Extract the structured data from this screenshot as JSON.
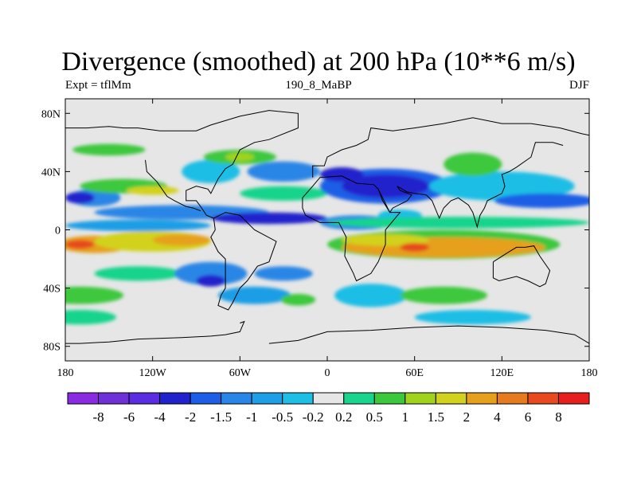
{
  "title": "Divergence (smoothed) at 200 hPa (10**6 m/s)",
  "left_string": "Expt = tflMm",
  "center_string": "190_8_MaBP",
  "right_string": "DJF",
  "map": {
    "projection": "cylindrical-equidistant",
    "lon_range": [
      -180,
      180
    ],
    "lat_range": [
      -90,
      90
    ],
    "field_units": "10**6 m/s"
  },
  "y_ticks": [
    {
      "label": "80N",
      "lat": 80
    },
    {
      "label": "40N",
      "lat": 40
    },
    {
      "label": "0",
      "lat": 0
    },
    {
      "label": "40S",
      "lat": -40
    },
    {
      "label": "80S",
      "lat": -80
    }
  ],
  "x_ticks": [
    {
      "label": "180",
      "lon": -180
    },
    {
      "label": "120W",
      "lon": -120
    },
    {
      "label": "60W",
      "lon": -60
    },
    {
      "label": "0",
      "lon": 0
    },
    {
      "label": "60E",
      "lon": 60
    },
    {
      "label": "120E",
      "lon": 120
    },
    {
      "label": "180",
      "lon": 180
    }
  ],
  "colorbar": {
    "colors": [
      "#8a2be2",
      "#7030d8",
      "#5a2ee0",
      "#2222cc",
      "#1e5ee6",
      "#2a86e6",
      "#1e9ee6",
      "#1ebee6",
      "#e6e6e6",
      "#19d48c",
      "#3cc83c",
      "#a0d21e",
      "#d2d21e",
      "#e6a01e",
      "#e67a1e",
      "#e64a1e",
      "#e61e1e"
    ],
    "labels": [
      "-8",
      "-6",
      "-4",
      "-2",
      "-1.5",
      "-1",
      "-0.5",
      "-0.2",
      "0.2",
      "0.5",
      "1",
      "1.5",
      "2",
      "4",
      "6",
      "8"
    ]
  },
  "blobs": [
    {
      "lon": -160,
      "lat": -10,
      "rx": 25,
      "ry": 6,
      "color": "#e6a01e"
    },
    {
      "lon": -170,
      "lat": -10,
      "rx": 10,
      "ry": 3,
      "color": "#e64a1e"
    },
    {
      "lon": -120,
      "lat": -8,
      "rx": 40,
      "ry": 7,
      "color": "#d2d21e"
    },
    {
      "lon": -100,
      "lat": -7,
      "rx": 20,
      "ry": 4,
      "color": "#e6a01e"
    },
    {
      "lon": -130,
      "lat": 3,
      "rx": 50,
      "ry": 4,
      "color": "#1e9ee6"
    },
    {
      "lon": -100,
      "lat": 12,
      "rx": 60,
      "ry": 5,
      "color": "#2a86e6"
    },
    {
      "lon": -40,
      "lat": 8,
      "rx": 40,
      "ry": 4,
      "color": "#2222cc"
    },
    {
      "lon": -160,
      "lat": 22,
      "rx": 18,
      "ry": 6,
      "color": "#2a86e6"
    },
    {
      "lon": -170,
      "lat": 22,
      "rx": 10,
      "ry": 4,
      "color": "#2222cc"
    },
    {
      "lon": -140,
      "lat": 30,
      "rx": 30,
      "ry": 5,
      "color": "#3cc83c"
    },
    {
      "lon": -120,
      "lat": 27,
      "rx": 18,
      "ry": 3,
      "color": "#d2d21e"
    },
    {
      "lon": -150,
      "lat": 55,
      "rx": 25,
      "ry": 4,
      "color": "#3cc83c"
    },
    {
      "lon": -80,
      "lat": 40,
      "rx": 20,
      "ry": 8,
      "color": "#1ebee6"
    },
    {
      "lon": -60,
      "lat": 50,
      "rx": 25,
      "ry": 5,
      "color": "#3cc83c"
    },
    {
      "lon": -60,
      "lat": 50,
      "rx": 10,
      "ry": 3,
      "color": "#a0d21e"
    },
    {
      "lon": -30,
      "lat": 40,
      "rx": 25,
      "ry": 7,
      "color": "#2a86e6"
    },
    {
      "lon": -30,
      "lat": 25,
      "rx": 30,
      "ry": 5,
      "color": "#19d48c"
    },
    {
      "lon": 40,
      "lat": 30,
      "rx": 45,
      "ry": 12,
      "color": "#1e5ee6"
    },
    {
      "lon": 40,
      "lat": 30,
      "rx": 30,
      "ry": 8,
      "color": "#2222cc"
    },
    {
      "lon": 10,
      "lat": 38,
      "rx": 15,
      "ry": 5,
      "color": "#2222cc"
    },
    {
      "lon": 20,
      "lat": 5,
      "rx": 25,
      "ry": 5,
      "color": "#2a86e6"
    },
    {
      "lon": 50,
      "lat": 10,
      "rx": 15,
      "ry": 4,
      "color": "#1ebee6"
    },
    {
      "lon": 90,
      "lat": 5,
      "rx": 90,
      "ry": 4,
      "color": "#19d48c"
    },
    {
      "lon": 80,
      "lat": -10,
      "rx": 80,
      "ry": 10,
      "color": "#3cc83c"
    },
    {
      "lon": 80,
      "lat": -12,
      "rx": 70,
      "ry": 7,
      "color": "#e6a01e"
    },
    {
      "lon": 40,
      "lat": -7,
      "rx": 30,
      "ry": 4,
      "color": "#d2d21e"
    },
    {
      "lon": 60,
      "lat": -12,
      "rx": 10,
      "ry": 3,
      "color": "#e64a1e"
    },
    {
      "lon": 120,
      "lat": 30,
      "rx": 50,
      "ry": 10,
      "color": "#1ebee6"
    },
    {
      "lon": 150,
      "lat": 20,
      "rx": 35,
      "ry": 5,
      "color": "#1e5ee6"
    },
    {
      "lon": 100,
      "lat": 45,
      "rx": 20,
      "ry": 8,
      "color": "#3cc83c"
    },
    {
      "lon": -170,
      "lat": -45,
      "rx": 30,
      "ry": 6,
      "color": "#3cc83c"
    },
    {
      "lon": -130,
      "lat": -30,
      "rx": 30,
      "ry": 5,
      "color": "#19d48c"
    },
    {
      "lon": -80,
      "lat": -30,
      "rx": 25,
      "ry": 8,
      "color": "#2a86e6"
    },
    {
      "lon": -80,
      "lat": -35,
      "rx": 10,
      "ry": 4,
      "color": "#2222cc"
    },
    {
      "lon": -50,
      "lat": -45,
      "rx": 25,
      "ry": 6,
      "color": "#1e9ee6"
    },
    {
      "lon": -30,
      "lat": -30,
      "rx": 20,
      "ry": 5,
      "color": "#2a86e6"
    },
    {
      "lon": -20,
      "lat": -48,
      "rx": 12,
      "ry": 4,
      "color": "#3cc83c"
    },
    {
      "lon": 30,
      "lat": -45,
      "rx": 25,
      "ry": 8,
      "color": "#1ebee6"
    },
    {
      "lon": 80,
      "lat": -45,
      "rx": 30,
      "ry": 6,
      "color": "#3cc83c"
    },
    {
      "lon": -170,
      "lat": -60,
      "rx": 25,
      "ry": 5,
      "color": "#19d48c"
    },
    {
      "lon": 100,
      "lat": -60,
      "rx": 40,
      "ry": 5,
      "color": "#1ebee6"
    }
  ],
  "coastlines": [
    [
      [
        -180,
        70
      ],
      [
        -165,
        70
      ],
      [
        -150,
        71
      ],
      [
        -140,
        70
      ],
      [
        -130,
        70
      ],
      [
        -115,
        68
      ],
      [
        -100,
        68
      ],
      [
        -90,
        68
      ],
      [
        -80,
        72
      ],
      [
        -70,
        75
      ],
      [
        -60,
        78
      ],
      [
        -40,
        82
      ],
      [
        -20,
        80
      ],
      [
        -20,
        70
      ],
      [
        -40,
        62
      ],
      [
        -50,
        60
      ],
      [
        -60,
        55
      ],
      [
        -65,
        45
      ],
      [
        -70,
        42
      ],
      [
        -75,
        35
      ],
      [
        -80,
        25
      ],
      [
        -82,
        28
      ],
      [
        -90,
        30
      ],
      [
        -97,
        27
      ],
      [
        -97,
        20
      ],
      [
        -90,
        20
      ],
      [
        -87,
        16
      ],
      [
        -83,
        10
      ],
      [
        -78,
        8
      ],
      [
        -77,
        0
      ],
      [
        -80,
        -5
      ],
      [
        -75,
        -15
      ],
      [
        -70,
        -20
      ],
      [
        -70,
        -40
      ],
      [
        -73,
        -45
      ],
      [
        -75,
        -52
      ],
      [
        -68,
        -55
      ],
      [
        -65,
        -50
      ],
      [
        -60,
        -40
      ],
      [
        -55,
        -35
      ],
      [
        -48,
        -25
      ],
      [
        -40,
        -22
      ],
      [
        -35,
        -8
      ],
      [
        -50,
        0
      ],
      [
        -60,
        10
      ],
      [
        -70,
        12
      ],
      [
        -78,
        8
      ]
    ],
    [
      [
        -125,
        48
      ],
      [
        -124,
        40
      ],
      [
        -117,
        33
      ],
      [
        -110,
        23
      ],
      [
        -105,
        20
      ],
      [
        -97,
        16
      ],
      [
        -92,
        15
      ],
      [
        -87,
        13
      ]
    ],
    [
      [
        -10,
        36
      ],
      [
        -10,
        44
      ],
      [
        -2,
        44
      ],
      [
        0,
        50
      ],
      [
        10,
        55
      ],
      [
        20,
        58
      ],
      [
        28,
        62
      ],
      [
        30,
        70
      ],
      [
        45,
        68
      ],
      [
        60,
        70
      ],
      [
        80,
        73
      ],
      [
        100,
        77
      ],
      [
        120,
        73
      ],
      [
        140,
        73
      ],
      [
        160,
        70
      ],
      [
        175,
        66
      ],
      [
        180,
        65
      ]
    ],
    [
      [
        -17,
        15
      ],
      [
        -17,
        22
      ],
      [
        -10,
        30
      ],
      [
        -5,
        36
      ],
      [
        10,
        37
      ],
      [
        20,
        32
      ],
      [
        32,
        31
      ],
      [
        35,
        28
      ],
      [
        43,
        12
      ],
      [
        50,
        12
      ],
      [
        40,
        0
      ],
      [
        40,
        -10
      ],
      [
        35,
        -22
      ],
      [
        30,
        -30
      ],
      [
        20,
        -35
      ],
      [
        18,
        -30
      ],
      [
        12,
        -18
      ],
      [
        13,
        -5
      ],
      [
        8,
        5
      ],
      [
        -5,
        5
      ],
      [
        -15,
        10
      ],
      [
        -17,
        15
      ]
    ],
    [
      [
        35,
        28
      ],
      [
        38,
        20
      ],
      [
        43,
        12
      ],
      [
        45,
        15
      ],
      [
        55,
        20
      ],
      [
        58,
        24
      ],
      [
        50,
        27
      ],
      [
        48,
        30
      ],
      [
        55,
        26
      ],
      [
        60,
        25
      ],
      [
        68,
        24
      ],
      [
        72,
        20
      ],
      [
        77,
        8
      ],
      [
        80,
        15
      ],
      [
        85,
        20
      ],
      [
        90,
        22
      ],
      [
        97,
        17
      ],
      [
        100,
        12
      ],
      [
        103,
        2
      ],
      [
        105,
        10
      ],
      [
        108,
        15
      ],
      [
        110,
        20
      ],
      [
        120,
        25
      ],
      [
        122,
        30
      ],
      [
        120,
        38
      ],
      [
        125,
        40
      ],
      [
        130,
        43
      ],
      [
        140,
        50
      ],
      [
        143,
        60
      ],
      [
        155,
        60
      ],
      [
        162,
        58
      ]
    ],
    [
      [
        114,
        -22
      ],
      [
        114,
        -33
      ],
      [
        118,
        -35
      ],
      [
        130,
        -32
      ],
      [
        138,
        -35
      ],
      [
        146,
        -39
      ],
      [
        150,
        -37
      ],
      [
        153,
        -28
      ],
      [
        146,
        -18
      ],
      [
        142,
        -11
      ],
      [
        136,
        -12
      ],
      [
        130,
        -12
      ],
      [
        125,
        -15
      ],
      [
        114,
        -22
      ]
    ],
    [
      [
        -60,
        -64
      ],
      [
        -57,
        -63
      ],
      [
        -60,
        -70
      ],
      [
        -70,
        -72
      ],
      [
        -80,
        -73
      ],
      [
        -100,
        -74
      ],
      [
        -130,
        -75
      ],
      [
        -150,
        -77
      ],
      [
        -170,
        -78
      ],
      [
        -180,
        -78
      ]
    ],
    [
      [
        -40,
        -78
      ],
      [
        -20,
        -76
      ],
      [
        0,
        -70
      ],
      [
        30,
        -69
      ],
      [
        60,
        -67
      ],
      [
        90,
        -66
      ],
      [
        120,
        -67
      ],
      [
        150,
        -69
      ],
      [
        170,
        -72
      ],
      [
        180,
        -78
      ]
    ]
  ]
}
